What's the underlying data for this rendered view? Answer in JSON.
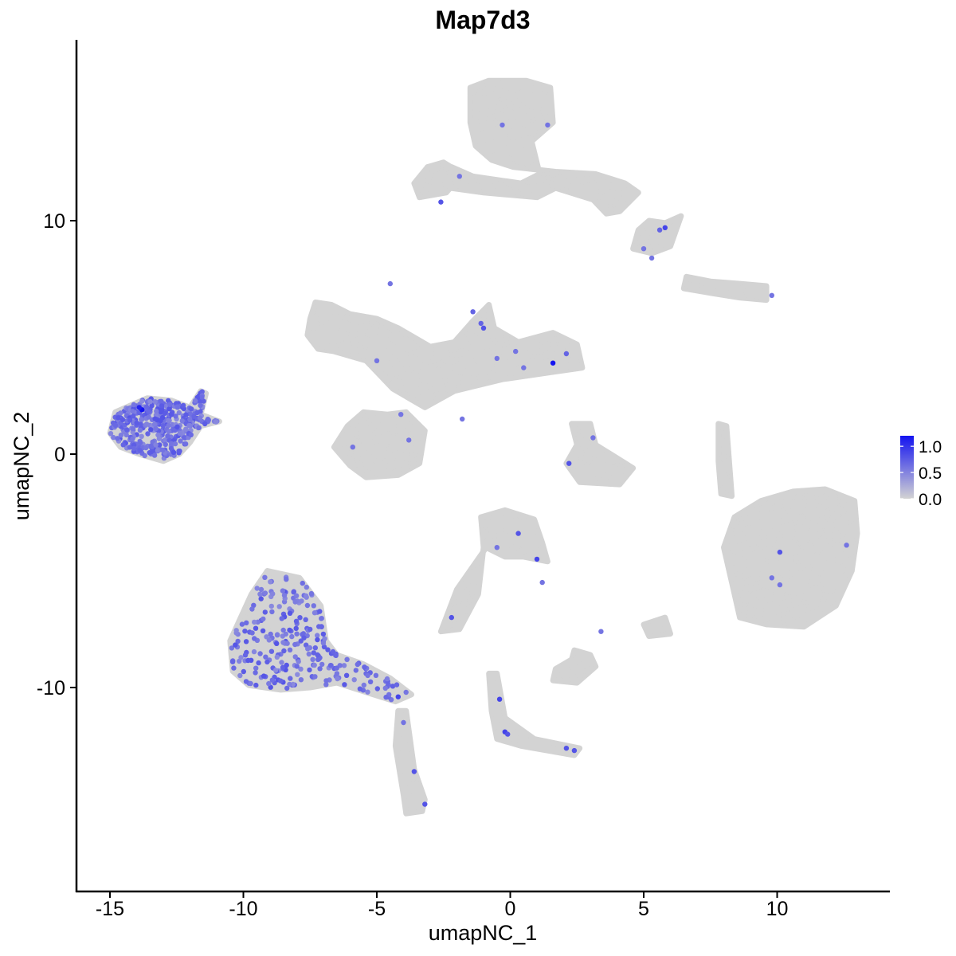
{
  "chart_data": {
    "type": "scatter",
    "title": "Map7d3",
    "xlabel": "umapNC_1",
    "ylabel": "umapNC_2",
    "xlim": [
      -16.5,
      14.5
    ],
    "ylim": [
      -18.3,
      17.8
    ],
    "xticks": [
      -15,
      -10,
      -5,
      0,
      5,
      10
    ],
    "xtick_labels": [
      "-15",
      "-10",
      "-5",
      "0",
      "5",
      "10"
    ],
    "yticks": [
      -10,
      0,
      10
    ],
    "ytick_labels": [
      "-10",
      "0",
      "10"
    ],
    "grid": false,
    "background_color": "#d3d3d3",
    "expressed_color_low": "#a37ef0",
    "expressed_color_high": "#1414f0",
    "legend": {
      "position": "right",
      "type": "colorbar",
      "min": 0.0,
      "max": 1.2,
      "ticks": [
        1.0,
        0.5,
        0.0
      ],
      "tick_labels": [
        "1.0",
        "0.5",
        "0.0"
      ],
      "low_color": "#d3d3d3",
      "high_color": "#1414f0"
    },
    "clusters": [
      {
        "name": "top-right-upper",
        "shape": [
          [
            -0.8,
            16.0
          ],
          [
            -1.5,
            15.7
          ],
          [
            -1.5,
            14.2
          ],
          [
            -1.3,
            13.2
          ],
          [
            -0.7,
            12.6
          ],
          [
            0.1,
            12.3
          ],
          [
            1.7,
            12.1
          ],
          [
            3.2,
            12.0
          ],
          [
            4.3,
            11.6
          ],
          [
            4.8,
            11.2
          ],
          [
            4.1,
            10.4
          ],
          [
            3.6,
            10.3
          ],
          [
            3.1,
            10.9
          ],
          [
            1.7,
            11.4
          ],
          [
            1.0,
            11.0
          ],
          [
            -1.0,
            11.2
          ],
          [
            -3.5,
            11.6
          ],
          [
            -3.1,
            12.3
          ],
          [
            -2.2,
            12.3
          ],
          [
            -1.4,
            11.9
          ],
          [
            0.4,
            11.6
          ],
          [
            1.1,
            12.0
          ],
          [
            0.8,
            13.4
          ],
          [
            1.6,
            14.2
          ],
          [
            1.5,
            15.7
          ],
          [
            0.6,
            16.0
          ]
        ],
        "density": 650
      },
      {
        "name": "top-right-lobe",
        "shape": [
          [
            4.8,
            9.6
          ],
          [
            5.2,
            10.0
          ],
          [
            5.8,
            9.9
          ],
          [
            6.4,
            10.2
          ],
          [
            6.0,
            8.9
          ],
          [
            5.3,
            8.6
          ],
          [
            4.6,
            8.8
          ]
        ],
        "density": 80
      },
      {
        "name": "top-left-small",
        "shape": [
          [
            -3.6,
            11.6
          ],
          [
            -3.1,
            12.3
          ],
          [
            -2.5,
            12.5
          ],
          [
            -1.8,
            12.0
          ],
          [
            -2.4,
            11.2
          ],
          [
            -3.4,
            11.0
          ]
        ],
        "density": 90
      },
      {
        "name": "elongated-right",
        "shape": [
          [
            6.5,
            7.1
          ],
          [
            7.5,
            6.9
          ],
          [
            8.6,
            6.7
          ],
          [
            9.6,
            6.6
          ],
          [
            9.6,
            7.2
          ],
          [
            8.6,
            7.3
          ],
          [
            7.5,
            7.4
          ],
          [
            6.6,
            7.6
          ]
        ],
        "density": 50
      },
      {
        "name": "central-upper",
        "shape": [
          [
            -7.5,
            5.8
          ],
          [
            -7.3,
            6.5
          ],
          [
            -6.7,
            6.4
          ],
          [
            -6.0,
            6.0
          ],
          [
            -5.0,
            5.8
          ],
          [
            -4.2,
            5.4
          ],
          [
            -3.0,
            4.6
          ],
          [
            -2.1,
            4.8
          ],
          [
            -1.4,
            5.7
          ],
          [
            -0.8,
            6.4
          ],
          [
            -0.6,
            5.4
          ],
          [
            0.3,
            4.8
          ],
          [
            1.6,
            5.2
          ],
          [
            2.5,
            4.7
          ],
          [
            2.7,
            3.7
          ],
          [
            1.5,
            3.5
          ],
          [
            -0.3,
            3.2
          ],
          [
            -2.1,
            2.7
          ],
          [
            -3.2,
            2.0
          ],
          [
            -4.4,
            2.8
          ],
          [
            -5.4,
            4.0
          ],
          [
            -6.6,
            4.4
          ],
          [
            -7.2,
            4.5
          ],
          [
            -7.6,
            5.1
          ]
        ],
        "density": 750
      },
      {
        "name": "central-lower",
        "shape": [
          [
            -6.1,
            1.2
          ],
          [
            -5.5,
            1.8
          ],
          [
            -4.6,
            1.7
          ],
          [
            -3.9,
            1.8
          ],
          [
            -3.2,
            1.0
          ],
          [
            -3.4,
            -0.4
          ],
          [
            -4.2,
            -0.9
          ],
          [
            -5.4,
            -1.0
          ],
          [
            -6.0,
            -0.5
          ],
          [
            -6.6,
            0.3
          ]
        ],
        "density": 350
      },
      {
        "name": "left-cluster",
        "shape": [
          [
            -14.8,
            1.8
          ],
          [
            -13.6,
            2.4
          ],
          [
            -12.7,
            2.3
          ],
          [
            -12.0,
            2.0
          ],
          [
            -11.6,
            2.7
          ],
          [
            -11.4,
            2.6
          ],
          [
            -11.6,
            1.7
          ],
          [
            -10.9,
            1.4
          ],
          [
            -11.6,
            1.2
          ],
          [
            -12.0,
            0.5
          ],
          [
            -12.4,
            0.0
          ],
          [
            -13.0,
            -0.3
          ],
          [
            -13.9,
            0.0
          ],
          [
            -14.6,
            0.3
          ],
          [
            -15.0,
            0.9
          ]
        ],
        "density": 380,
        "expressed_frac": 0.95
      },
      {
        "name": "right-small-center",
        "shape": [
          [
            2.3,
            1.3
          ],
          [
            3.0,
            1.3
          ],
          [
            3.2,
            0.4
          ],
          [
            3.9,
            -0.1
          ],
          [
            4.6,
            -0.6
          ],
          [
            4.1,
            -1.3
          ],
          [
            2.6,
            -1.2
          ],
          [
            2.1,
            -0.4
          ],
          [
            2.5,
            0.4
          ]
        ],
        "density": 140
      },
      {
        "name": "thin-strand-right",
        "shape": [
          [
            7.8,
            1.3
          ],
          [
            8.1,
            1.2
          ],
          [
            8.3,
            -1.8
          ],
          [
            7.9,
            -1.7
          ],
          [
            7.8,
            -0.3
          ]
        ],
        "density": 40
      },
      {
        "name": "big-right",
        "shape": [
          [
            8.0,
            -4.0
          ],
          [
            8.4,
            -2.7
          ],
          [
            9.4,
            -2.0
          ],
          [
            10.6,
            -1.6
          ],
          [
            11.8,
            -1.5
          ],
          [
            12.9,
            -2.0
          ],
          [
            13.0,
            -3.4
          ],
          [
            12.8,
            -5.0
          ],
          [
            12.2,
            -6.5
          ],
          [
            11.0,
            -7.4
          ],
          [
            9.6,
            -7.3
          ],
          [
            8.6,
            -7.0
          ],
          [
            8.3,
            -5.5
          ]
        ],
        "density": 1100
      },
      {
        "name": "middle-lower",
        "shape": [
          [
            -1.1,
            -2.7
          ],
          [
            -0.2,
            -2.4
          ],
          [
            0.9,
            -2.8
          ],
          [
            1.2,
            -3.8
          ],
          [
            1.4,
            -4.6
          ],
          [
            0.5,
            -4.4
          ],
          [
            -0.2,
            -4.4
          ],
          [
            -0.9,
            -4.0
          ],
          [
            -2.0,
            -5.8
          ],
          [
            -2.6,
            -7.6
          ],
          [
            -1.9,
            -7.5
          ],
          [
            -1.2,
            -6.0
          ],
          [
            -1.0,
            -4.0
          ]
        ],
        "density": 200
      },
      {
        "name": "small-lower-mid",
        "shape": [
          [
            1.7,
            -9.2
          ],
          [
            2.3,
            -8.8
          ],
          [
            2.4,
            -8.4
          ],
          [
            3.0,
            -8.6
          ],
          [
            3.2,
            -9.1
          ],
          [
            2.5,
            -9.8
          ],
          [
            1.6,
            -9.7
          ]
        ],
        "density": 60
      },
      {
        "name": "small-right-mid",
        "shape": [
          [
            5.0,
            -7.3
          ],
          [
            5.8,
            -7.0
          ],
          [
            6.0,
            -7.7
          ],
          [
            5.2,
            -7.8
          ]
        ],
        "density": 16
      },
      {
        "name": "lower-left-big",
        "shape": [
          [
            -10.5,
            -8.0
          ],
          [
            -9.7,
            -6.0
          ],
          [
            -9.1,
            -5.0
          ],
          [
            -7.9,
            -5.3
          ],
          [
            -7.1,
            -6.5
          ],
          [
            -6.9,
            -8.0
          ],
          [
            -6.5,
            -8.6
          ],
          [
            -5.5,
            -9.0
          ],
          [
            -4.5,
            -9.6
          ],
          [
            -3.7,
            -10.3
          ],
          [
            -4.3,
            -10.6
          ],
          [
            -5.4,
            -10.2
          ],
          [
            -6.5,
            -9.8
          ],
          [
            -7.5,
            -10.0
          ],
          [
            -8.6,
            -10.1
          ],
          [
            -9.8,
            -9.9
          ],
          [
            -10.4,
            -9.3
          ]
        ],
        "density": 650,
        "expressed_frac": 0.38
      },
      {
        "name": "lower-strand",
        "shape": [
          [
            -4.2,
            -11.0
          ],
          [
            -3.9,
            -11.0
          ],
          [
            -3.6,
            -13.5
          ],
          [
            -3.2,
            -14.8
          ],
          [
            -3.3,
            -15.3
          ],
          [
            -3.9,
            -15.4
          ],
          [
            -4.0,
            -14.6
          ],
          [
            -4.3,
            -12.5
          ]
        ],
        "density": 55
      },
      {
        "name": "lower-mid-strand",
        "shape": [
          [
            -0.8,
            -9.4
          ],
          [
            -0.5,
            -9.4
          ],
          [
            -0.2,
            -11.3
          ],
          [
            0.9,
            -12.2
          ],
          [
            2.6,
            -12.6
          ],
          [
            2.4,
            -12.9
          ],
          [
            0.4,
            -12.5
          ],
          [
            -0.5,
            -12.2
          ],
          [
            -0.7,
            -11.0
          ]
        ],
        "density": 60
      }
    ],
    "expressed_points": [
      {
        "x": -0.3,
        "y": 14.1,
        "v": 0.6
      },
      {
        "x": 1.4,
        "y": 14.1,
        "v": 0.6
      },
      {
        "x": -1.9,
        "y": 11.9,
        "v": 0.6
      },
      {
        "x": -2.6,
        "y": 10.8,
        "v": 0.8
      },
      {
        "x": 5.8,
        "y": 9.7,
        "v": 0.9
      },
      {
        "x": 5.6,
        "y": 9.6,
        "v": 0.7
      },
      {
        "x": 5.0,
        "y": 8.8,
        "v": 0.6
      },
      {
        "x": 5.3,
        "y": 8.4,
        "v": 0.6
      },
      {
        "x": 9.8,
        "y": 6.8,
        "v": 0.6
      },
      {
        "x": -4.5,
        "y": 7.3,
        "v": 0.6
      },
      {
        "x": -1.4,
        "y": 6.1,
        "v": 0.7
      },
      {
        "x": -1.1,
        "y": 5.6,
        "v": 0.7
      },
      {
        "x": -1.0,
        "y": 5.4,
        "v": 0.8
      },
      {
        "x": -0.5,
        "y": 4.1,
        "v": 0.6
      },
      {
        "x": 0.2,
        "y": 4.4,
        "v": 0.6
      },
      {
        "x": 1.6,
        "y": 3.9,
        "v": 1.2
      },
      {
        "x": 2.1,
        "y": 4.3,
        "v": 0.7
      },
      {
        "x": 0.5,
        "y": 3.7,
        "v": 0.6
      },
      {
        "x": -5.0,
        "y": 4.0,
        "v": 0.6
      },
      {
        "x": -4.1,
        "y": 1.7,
        "v": 0.6
      },
      {
        "x": -3.8,
        "y": 0.6,
        "v": 0.6
      },
      {
        "x": -5.9,
        "y": 0.3,
        "v": 0.6
      },
      {
        "x": -1.8,
        "y": 1.5,
        "v": 0.6
      },
      {
        "x": 3.1,
        "y": 0.7,
        "v": 0.6
      },
      {
        "x": 2.2,
        "y": -0.4,
        "v": 0.8
      },
      {
        "x": -13.8,
        "y": 1.9,
        "v": 1.2
      },
      {
        "x": -13.9,
        "y": 2.0,
        "v": 1.1
      },
      {
        "x": 0.3,
        "y": -3.4,
        "v": 0.8
      },
      {
        "x": -0.5,
        "y": -4.0,
        "v": 0.6
      },
      {
        "x": 1.0,
        "y": -4.5,
        "v": 0.9
      },
      {
        "x": 1.2,
        "y": -5.5,
        "v": 0.6
      },
      {
        "x": -2.2,
        "y": -7.0,
        "v": 0.8
      },
      {
        "x": 10.1,
        "y": -4.2,
        "v": 0.8
      },
      {
        "x": 9.8,
        "y": -5.3,
        "v": 0.6
      },
      {
        "x": 10.1,
        "y": -5.6,
        "v": 0.6
      },
      {
        "x": 12.6,
        "y": -3.9,
        "v": 0.6
      },
      {
        "x": 3.4,
        "y": -7.6,
        "v": 0.6
      },
      {
        "x": -0.4,
        "y": -10.5,
        "v": 0.9
      },
      {
        "x": -0.2,
        "y": -11.9,
        "v": 0.9
      },
      {
        "x": -0.1,
        "y": -12.0,
        "v": 0.8
      },
      {
        "x": 2.1,
        "y": -12.6,
        "v": 0.8
      },
      {
        "x": 2.4,
        "y": -12.7,
        "v": 0.8
      },
      {
        "x": -3.6,
        "y": -13.6,
        "v": 0.8
      },
      {
        "x": -3.2,
        "y": -15.0,
        "v": 0.8
      },
      {
        "x": -4.2,
        "y": -10.4,
        "v": 0.9
      },
      {
        "x": -4.0,
        "y": -11.5,
        "v": 0.6
      }
    ]
  }
}
